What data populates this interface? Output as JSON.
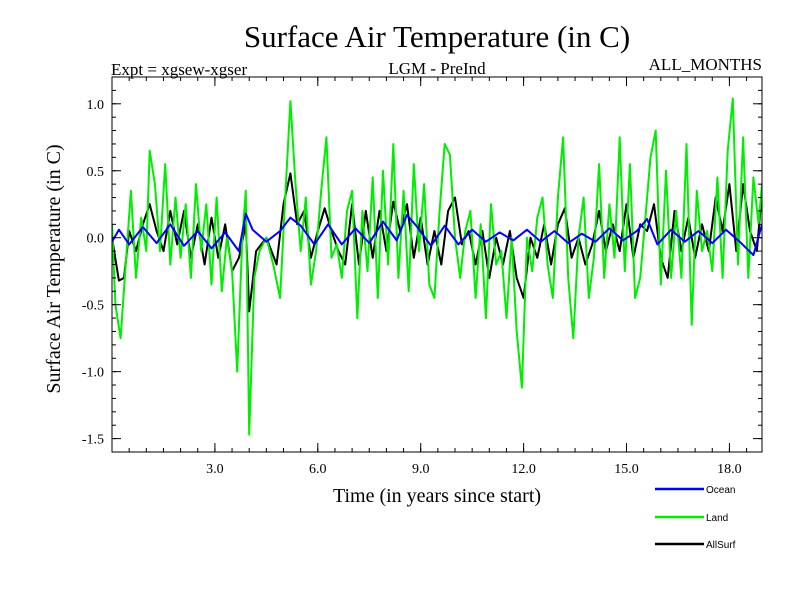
{
  "chart_data": {
    "type": "line",
    "title": "Surface Air Temperature (in C)",
    "subtitle_left": "Expt = xgsew-xgser",
    "subtitle_center": "LGM - PreInd",
    "subtitle_right": "ALL_MONTHS",
    "xlabel": "Time (in years since start)",
    "ylabel": "Surface Air Temperature (in C)",
    "xlim": [
      0.0,
      18.95
    ],
    "ylim": [
      -1.6,
      1.2
    ],
    "xticks": [
      3.0,
      6.0,
      9.0,
      12.0,
      15.0,
      18.0
    ],
    "xtick_labels": [
      "3.0",
      "6.0",
      "9.0",
      "12.0",
      "15.0",
      "18.0"
    ],
    "yticks": [
      1.0,
      0.5,
      0.0,
      -0.5,
      -1.0,
      -1.5
    ],
    "ytick_labels": [
      "1.0",
      "0.5",
      "0.0",
      "-0.5",
      "-1.0",
      "-1.5"
    ],
    "legend_position": "bottom-right, below plot",
    "series": [
      {
        "name": "Ocean",
        "color": "#0000ff",
        "x": [
          0.0,
          0.2,
          0.5,
          0.9,
          1.3,
          1.7,
          2.1,
          2.5,
          2.9,
          3.3,
          3.7,
          3.9,
          4.1,
          4.5,
          4.9,
          5.2,
          5.5,
          5.9,
          6.3,
          6.7,
          7.1,
          7.5,
          7.9,
          8.3,
          8.6,
          8.9,
          9.3,
          9.7,
          10.1,
          10.5,
          10.9,
          11.3,
          11.7,
          12.1,
          12.5,
          12.9,
          13.3,
          13.7,
          14.1,
          14.5,
          14.9,
          15.3,
          15.6,
          15.9,
          16.3,
          16.7,
          17.1,
          17.5,
          17.9,
          18.3,
          18.7,
          18.95
        ],
        "values": [
          -0.03,
          0.06,
          -0.05,
          0.08,
          -0.04,
          0.1,
          -0.06,
          0.05,
          -0.08,
          0.04,
          -0.1,
          0.18,
          0.06,
          -0.03,
          0.05,
          0.15,
          0.09,
          -0.05,
          0.1,
          -0.05,
          0.07,
          -0.04,
          0.12,
          -0.02,
          0.17,
          0.08,
          -0.06,
          0.09,
          -0.05,
          0.06,
          -0.03,
          0.04,
          -0.02,
          0.06,
          -0.03,
          0.05,
          -0.04,
          0.03,
          -0.03,
          0.07,
          -0.02,
          0.05,
          0.14,
          -0.05,
          0.06,
          -0.03,
          0.05,
          -0.04,
          0.06,
          -0.03,
          -0.13,
          0.1
        ]
      },
      {
        "name": "Land",
        "color": "#00ee00",
        "x": [
          0.0,
          0.1,
          0.25,
          0.4,
          0.55,
          0.7,
          0.85,
          1.0,
          1.1,
          1.25,
          1.4,
          1.55,
          1.7,
          1.85,
          2.0,
          2.15,
          2.3,
          2.45,
          2.6,
          2.75,
          2.9,
          3.05,
          3.2,
          3.35,
          3.5,
          3.65,
          3.8,
          3.9,
          4.0,
          4.15,
          4.3,
          4.5,
          4.7,
          4.9,
          5.05,
          5.2,
          5.35,
          5.5,
          5.65,
          5.8,
          5.95,
          6.1,
          6.25,
          6.4,
          6.55,
          6.7,
          6.85,
          7.0,
          7.15,
          7.3,
          7.45,
          7.6,
          7.75,
          7.9,
          8.05,
          8.2,
          8.35,
          8.5,
          8.65,
          8.8,
          8.95,
          9.1,
          9.25,
          9.4,
          9.55,
          9.7,
          9.85,
          10.0,
          10.15,
          10.3,
          10.45,
          10.6,
          10.75,
          10.9,
          11.05,
          11.2,
          11.35,
          11.5,
          11.65,
          11.8,
          11.95,
          12.1,
          12.25,
          12.4,
          12.55,
          12.7,
          12.85,
          13.0,
          13.15,
          13.3,
          13.45,
          13.6,
          13.75,
          13.9,
          14.05,
          14.2,
          14.35,
          14.5,
          14.65,
          14.8,
          14.95,
          15.1,
          15.25,
          15.4,
          15.55,
          15.7,
          15.85,
          16.0,
          16.15,
          16.3,
          16.45,
          16.6,
          16.75,
          16.9,
          17.05,
          17.2,
          17.35,
          17.5,
          17.65,
          17.8,
          17.95,
          18.1,
          18.25,
          18.4,
          18.55,
          18.7,
          18.85,
          18.95
        ],
        "values": [
          0.1,
          -0.5,
          -0.75,
          -0.2,
          0.35,
          -0.3,
          0.15,
          -0.1,
          0.65,
          0.4,
          -0.1,
          0.55,
          -0.2,
          0.3,
          -0.15,
          0.25,
          -0.3,
          0.4,
          -0.1,
          0.25,
          -0.35,
          0.3,
          -0.4,
          0.0,
          -0.25,
          -1.0,
          0.0,
          0.35,
          -1.47,
          -0.3,
          -0.1,
          0.0,
          -0.2,
          -0.45,
          0.3,
          1.02,
          0.4,
          -0.1,
          0.3,
          -0.35,
          -0.1,
          0.35,
          0.75,
          -0.15,
          -0.05,
          -0.3,
          0.2,
          0.35,
          -0.6,
          0.2,
          -0.25,
          0.45,
          -0.45,
          0.5,
          -0.2,
          0.7,
          -0.3,
          0.35,
          -0.4,
          0.55,
          -0.1,
          0.4,
          -0.35,
          -0.45,
          0.2,
          0.7,
          0.62,
          0.0,
          -0.3,
          0.05,
          0.2,
          -0.45,
          0.1,
          -0.6,
          0.25,
          -0.2,
          -0.1,
          -0.6,
          0.0,
          -0.7,
          -1.12,
          0.0,
          -0.25,
          0.15,
          0.3,
          -0.2,
          -0.45,
          0.3,
          0.75,
          -0.3,
          -0.75,
          0.0,
          0.3,
          -0.45,
          -0.15,
          0.55,
          -0.3,
          0.25,
          -0.15,
          0.75,
          -0.25,
          0.55,
          -0.45,
          -0.3,
          0.15,
          0.6,
          0.8,
          -0.35,
          0.5,
          -0.3,
          0.2,
          -0.3,
          0.7,
          -0.65,
          0.35,
          -0.1,
          0.05,
          -0.25,
          0.45,
          -0.3,
          0.65,
          1.04,
          -0.2,
          0.75,
          -0.3,
          0.45,
          0.1,
          0.4
        ]
      },
      {
        "name": "AllSurf",
        "color": "#000000",
        "x": [
          0.0,
          0.2,
          0.35,
          0.5,
          0.7,
          0.9,
          1.1,
          1.3,
          1.5,
          1.7,
          1.9,
          2.1,
          2.3,
          2.5,
          2.7,
          2.9,
          3.1,
          3.3,
          3.5,
          3.7,
          3.9,
          4.0,
          4.2,
          4.5,
          4.8,
          5.0,
          5.2,
          5.4,
          5.6,
          5.8,
          6.0,
          6.2,
          6.4,
          6.6,
          6.8,
          7.0,
          7.2,
          7.4,
          7.6,
          7.8,
          8.0,
          8.2,
          8.4,
          8.6,
          8.8,
          9.0,
          9.2,
          9.4,
          9.6,
          9.8,
          10.0,
          10.2,
          10.4,
          10.6,
          10.8,
          11.0,
          11.2,
          11.4,
          11.6,
          11.8,
          12.0,
          12.2,
          12.4,
          12.6,
          12.8,
          13.0,
          13.2,
          13.4,
          13.6,
          13.8,
          14.0,
          14.2,
          14.4,
          14.6,
          14.8,
          15.0,
          15.2,
          15.4,
          15.6,
          15.8,
          16.0,
          16.2,
          16.4,
          16.6,
          16.8,
          17.0,
          17.2,
          17.4,
          17.6,
          17.8,
          18.0,
          18.2,
          18.4,
          18.6,
          18.8,
          18.95
        ],
        "values": [
          0.0,
          -0.32,
          -0.3,
          0.05,
          -0.1,
          0.1,
          0.25,
          0.05,
          -0.1,
          0.2,
          -0.05,
          0.2,
          -0.15,
          0.1,
          -0.2,
          0.15,
          -0.15,
          0.1,
          -0.25,
          -0.15,
          0.1,
          -0.55,
          -0.1,
          0.0,
          -0.2,
          0.25,
          0.48,
          0.1,
          0.2,
          -0.15,
          0.05,
          0.22,
          0.05,
          -0.1,
          -0.2,
          0.25,
          -0.2,
          0.2,
          -0.15,
          0.2,
          -0.1,
          0.27,
          0.05,
          0.25,
          -0.15,
          0.15,
          -0.2,
          0.05,
          -0.2,
          0.2,
          0.3,
          -0.05,
          0.05,
          -0.2,
          0.05,
          -0.3,
          0.0,
          -0.2,
          0.05,
          -0.3,
          -0.45,
          0.0,
          -0.15,
          0.1,
          -0.2,
          0.1,
          0.22,
          -0.15,
          0.0,
          -0.2,
          -0.05,
          0.2,
          -0.1,
          0.1,
          -0.1,
          0.25,
          -0.15,
          0.1,
          0.05,
          0.25,
          -0.15,
          -0.3,
          0.2,
          -0.1,
          0.15,
          -0.15,
          0.1,
          -0.1,
          0.3,
          0.05,
          0.4,
          -0.1,
          0.4,
          0.05,
          -0.1,
          0.35
        ]
      }
    ]
  }
}
